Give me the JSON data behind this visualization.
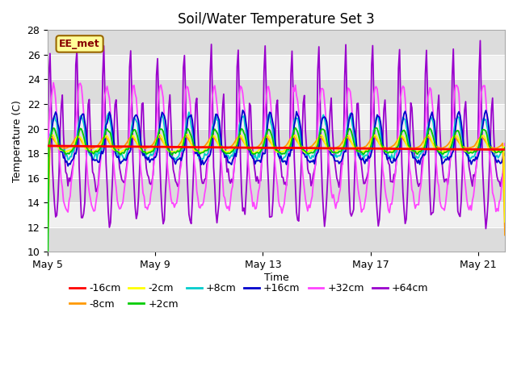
{
  "title": "Soil/Water Temperature Set 3",
  "xlabel": "Time",
  "ylabel": "Temperature (C)",
  "ylim": [
    10,
    28
  ],
  "xlim": [
    0,
    408
  ],
  "xtick_positions": [
    0,
    96,
    192,
    288,
    384
  ],
  "xtick_labels": [
    "May 5",
    "May 9",
    "May 13",
    "May 17",
    "May 21"
  ],
  "ytick_positions": [
    10,
    12,
    14,
    16,
    18,
    20,
    22,
    24,
    26,
    28
  ],
  "annotation_text": "EE_met",
  "annotation_bg": "#ffff99",
  "annotation_border": "#996600",
  "series_colors": {
    "-16cm": "#ff0000",
    "-8cm": "#ff9900",
    "-2cm": "#ffff00",
    "+2cm": "#00cc00",
    "+8cm": "#00cccc",
    "+16cm": "#0000cc",
    "+32cm": "#ff44ff",
    "+64cm": "#9900cc"
  },
  "plot_bg": "#f0f0f0",
  "band_color": "#dcdcdc",
  "n_points": 409
}
